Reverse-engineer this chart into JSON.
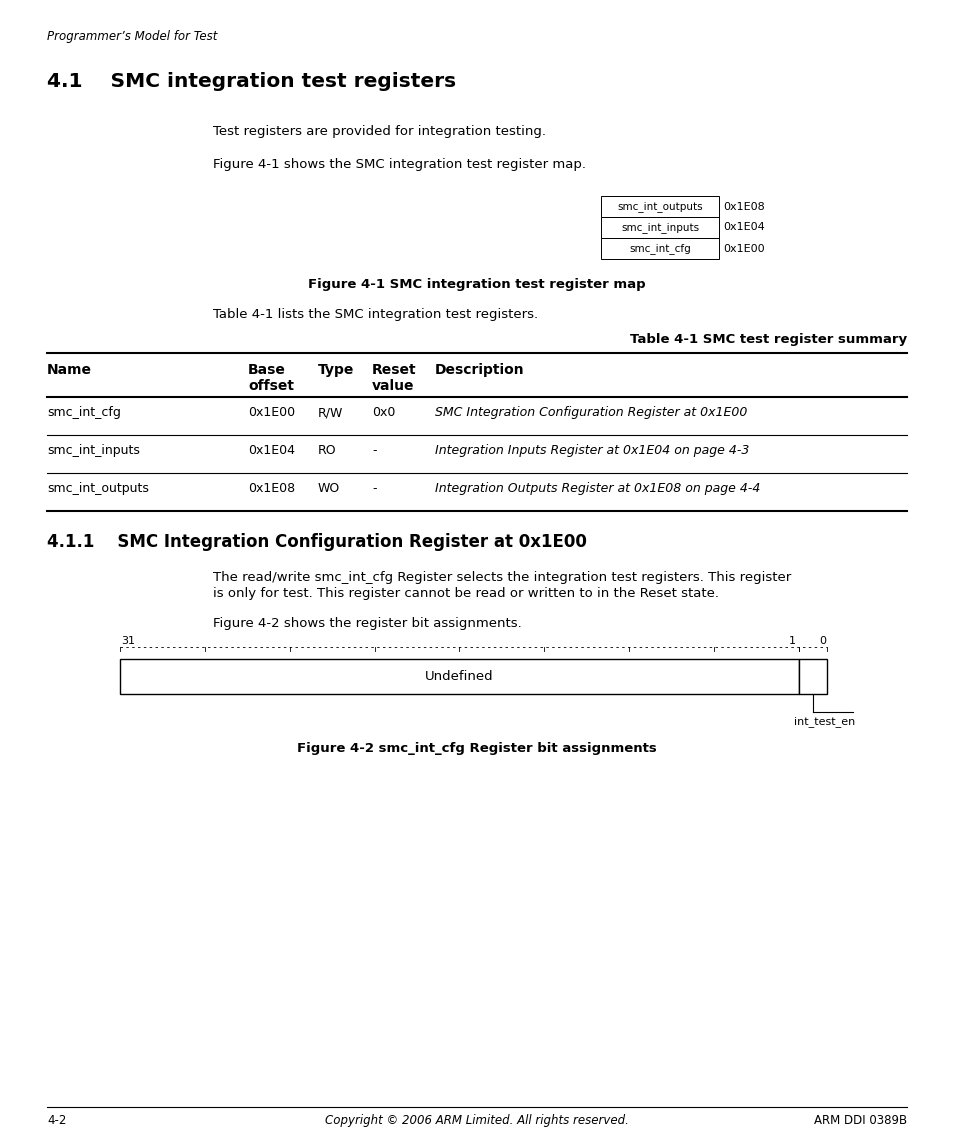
{
  "page_header": "Programmer’s Model for Test",
  "section_title": "4.1    SMC integration test registers",
  "section_body1": "Test registers are provided for integration testing.",
  "section_body2": "Figure 4-1 shows the SMC integration test register map.",
  "reg_map_labels": [
    "smc_int_outputs",
    "smc_int_inputs",
    "smc_int_cfg"
  ],
  "reg_map_addrs": [
    "0x1E08",
    "0x1E04",
    "0x1E00"
  ],
  "fig1_caption": "Figure 4-1 SMC integration test register map",
  "table_intro": "Table 4-1 lists the SMC integration test registers.",
  "table_caption": "Table 4-1 SMC test register summary",
  "table_rows": [
    [
      "smc_int_cfg",
      "0x1E00",
      "R/W",
      "0x0",
      "SMC Integration Configuration Register at 0x1E00"
    ],
    [
      "smc_int_inputs",
      "0x1E04",
      "RO",
      "-",
      "Integration Inputs Register at 0x1E04 on page 4-3"
    ],
    [
      "smc_int_outputs",
      "0x1E08",
      "WO",
      "-",
      "Integration Outputs Register at 0x1E08 on page 4-4"
    ]
  ],
  "subsection_title": "4.1.1    SMC Integration Configuration Register at 0x1E00",
  "sub_body1": "The read/write smc_int_cfg Register selects the integration test registers. This register",
  "sub_body2": "is only for test. This register cannot be read or written to in the Reset state.",
  "sub_body3": "Figure 4-2 shows the register bit assignments.",
  "reg_bit_label_31": "31",
  "reg_bit_label_1": "1",
  "reg_bit_label_0": "0",
  "reg_main_label": "Undefined",
  "reg_small_label": "int_test_en",
  "fig2_caption": "Figure 4-2 smc_int_cfg Register bit assignments",
  "footer_left": "4-2",
  "footer_center": "Copyright © 2006 ARM Limited. All rights reserved.",
  "footer_right": "ARM DDI 0389B",
  "bg_color": "#ffffff",
  "text_color": "#000000"
}
